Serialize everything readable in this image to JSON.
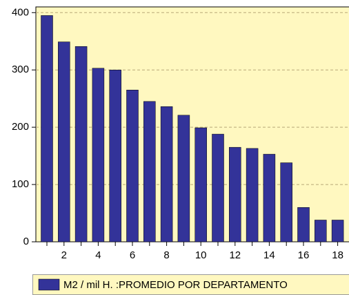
{
  "chart_data": {
    "type": "bar",
    "categories": [
      null,
      "2",
      null,
      "4",
      null,
      "6",
      null,
      "8",
      null,
      "10",
      null,
      "12",
      null,
      "14",
      null,
      "16",
      null,
      "18"
    ],
    "series": [
      {
        "name": "M2 / mil H. :PROMEDIO POR DEPARTAMENTO",
        "color": "#333399",
        "values": [
          395,
          349,
          341,
          303,
          300,
          265,
          245,
          236,
          221,
          199,
          188,
          165,
          163,
          153,
          138,
          60,
          38,
          38
        ]
      }
    ],
    "ylim": [
      0,
      410
    ],
    "yticks": [
      0,
      100,
      200,
      300,
      400
    ],
    "grid": true,
    "legend": "bottom"
  }
}
